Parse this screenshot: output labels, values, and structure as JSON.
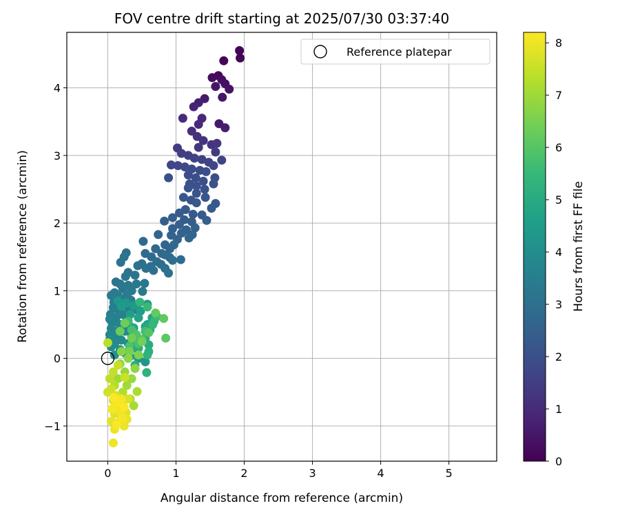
{
  "chart_data": {
    "type": "scatter",
    "title": "FOV centre drift starting at 2025/07/30 03:37:40",
    "xlabel": "Angular distance from reference (arcmin)",
    "ylabel": "Rotation from reference (arcmin)",
    "xlim": [
      -0.6,
      5.7
    ],
    "ylim": [
      -1.52,
      4.82
    ],
    "x_ticks": [
      0,
      1,
      2,
      3,
      4,
      5
    ],
    "x_tick_labels": [
      "0",
      "1",
      "2",
      "3",
      "4",
      "5"
    ],
    "y_ticks": [
      -1,
      0,
      1,
      2,
      3,
      4
    ],
    "y_tick_labels": [
      "−1",
      "0",
      "1",
      "2",
      "3",
      "4"
    ],
    "grid": true,
    "legend": {
      "position": "top-right",
      "label": "Reference platepar"
    },
    "reference_point": {
      "x": 0,
      "y": 0
    },
    "colorbar": {
      "label": "Hours from first FF file",
      "colormap": "viridis",
      "range": [
        0,
        8.2
      ],
      "ticks": [
        0,
        1,
        2,
        3,
        4,
        5,
        6,
        7,
        8
      ],
      "tick_labels": [
        "0",
        "1",
        "2",
        "3",
        "4",
        "5",
        "6",
        "7",
        "8"
      ]
    },
    "points": [
      [
        1.93,
        4.55,
        0.05
      ],
      [
        1.94,
        4.44,
        0.08
      ],
      [
        1.7,
        4.4,
        0.1
      ],
      [
        1.53,
        4.15,
        0.25
      ],
      [
        1.62,
        4.18,
        0.2
      ],
      [
        1.67,
        4.12,
        0.3
      ],
      [
        1.72,
        4.06,
        0.35
      ],
      [
        1.78,
        3.98,
        0.4
      ],
      [
        1.58,
        4.02,
        0.45
      ],
      [
        1.68,
        3.86,
        0.5
      ],
      [
        1.42,
        3.84,
        0.6
      ],
      [
        1.33,
        3.78,
        0.7
      ],
      [
        1.26,
        3.72,
        0.8
      ],
      [
        1.63,
        3.47,
        0.55
      ],
      [
        1.72,
        3.41,
        0.65
      ],
      [
        1.38,
        3.55,
        0.9
      ],
      [
        1.33,
        3.46,
        1.0
      ],
      [
        1.1,
        3.55,
        1.0
      ],
      [
        1.23,
        3.36,
        1.1
      ],
      [
        1.31,
        3.28,
        1.15
      ],
      [
        1.4,
        3.22,
        1.2
      ],
      [
        1.52,
        3.16,
        1.25
      ],
      [
        1.6,
        3.18,
        1.3
      ],
      [
        1.33,
        3.12,
        1.35
      ],
      [
        1.58,
        3.05,
        1.4
      ],
      [
        1.02,
        3.11,
        1.45
      ],
      [
        1.08,
        3.03,
        1.5
      ],
      [
        1.18,
        3.0,
        1.55
      ],
      [
        1.27,
        2.96,
        1.6
      ],
      [
        1.38,
        2.94,
        1.62
      ],
      [
        1.48,
        2.9,
        1.65
      ],
      [
        1.67,
        2.93,
        1.7
      ],
      [
        1.55,
        2.85,
        1.72
      ],
      [
        0.93,
        2.86,
        1.75
      ],
      [
        1.03,
        2.85,
        1.78
      ],
      [
        1.13,
        2.83,
        1.8
      ],
      [
        1.23,
        2.8,
        1.85
      ],
      [
        1.35,
        2.78,
        1.88
      ],
      [
        1.44,
        2.76,
        1.9
      ],
      [
        1.18,
        2.71,
        1.92
      ],
      [
        1.29,
        2.67,
        1.95
      ],
      [
        1.4,
        2.62,
        1.98
      ],
      [
        1.57,
        2.67,
        2.0
      ],
      [
        0.89,
        2.67,
        2.0
      ],
      [
        1.2,
        2.58,
        2.02
      ],
      [
        1.3,
        2.55,
        2.05
      ],
      [
        1.55,
        2.58,
        2.05
      ],
      [
        1.42,
        2.5,
        2.08
      ],
      [
        1.18,
        2.52,
        2.1
      ],
      [
        1.3,
        2.44,
        2.12
      ],
      [
        1.43,
        2.38,
        2.15
      ],
      [
        1.22,
        2.34,
        2.18
      ],
      [
        1.11,
        2.38,
        2.2
      ],
      [
        1.3,
        2.3,
        2.22
      ],
      [
        1.58,
        2.29,
        2.25
      ],
      [
        1.52,
        2.22,
        2.28
      ],
      [
        1.14,
        2.2,
        2.3
      ],
      [
        1.25,
        2.13,
        2.32
      ],
      [
        1.05,
        2.15,
        2.35
      ],
      [
        1.38,
        2.12,
        2.35
      ],
      [
        1.12,
        2.05,
        2.38
      ],
      [
        1.23,
        2.02,
        2.4
      ],
      [
        0.83,
        2.03,
        2.42
      ],
      [
        0.95,
        2.08,
        2.42
      ],
      [
        1.45,
        2.04,
        2.45
      ],
      [
        1.05,
        1.98,
        2.48
      ],
      [
        0.95,
        1.92,
        2.5
      ],
      [
        1.15,
        1.9,
        2.52
      ],
      [
        1.28,
        1.93,
        2.55
      ],
      [
        1.08,
        1.85,
        2.55
      ],
      [
        0.93,
        1.82,
        2.58
      ],
      [
        0.74,
        1.83,
        2.6
      ],
      [
        1.02,
        1.76,
        2.62
      ],
      [
        1.19,
        1.78,
        2.63
      ],
      [
        1.24,
        1.83,
        2.65
      ],
      [
        0.84,
        1.68,
        2.68
      ],
      [
        0.91,
        1.62,
        2.7
      ],
      [
        0.79,
        1.55,
        2.72
      ],
      [
        0.97,
        1.68,
        2.73
      ],
      [
        0.7,
        1.62,
        2.75
      ],
      [
        0.52,
        1.73,
        2.78
      ],
      [
        0.64,
        1.5,
        2.8
      ],
      [
        0.55,
        1.55,
        2.82
      ],
      [
        0.84,
        1.53,
        2.85
      ],
      [
        0.91,
        1.49,
        2.85
      ],
      [
        1.07,
        1.46,
        2.88
      ],
      [
        0.72,
        1.43,
        2.9
      ],
      [
        0.78,
        1.39,
        2.92
      ],
      [
        0.95,
        1.45,
        2.95
      ],
      [
        0.63,
        1.36,
        2.95
      ],
      [
        0.5,
        1.4,
        2.98
      ],
      [
        0.56,
        1.33,
        3.0
      ],
      [
        0.44,
        1.37,
        3.0
      ],
      [
        0.84,
        1.33,
        3.02
      ],
      [
        0.67,
        1.3,
        3.05
      ],
      [
        0.89,
        1.26,
        3.05
      ],
      [
        0.27,
        1.56,
        3.05
      ],
      [
        0.24,
        1.5,
        3.08
      ],
      [
        0.19,
        1.42,
        3.1
      ],
      [
        0.3,
        1.27,
        3.12
      ],
      [
        0.4,
        1.23,
        3.15
      ],
      [
        0.26,
        1.21,
        3.18
      ],
      [
        0.12,
        1.13,
        3.2
      ],
      [
        0.18,
        1.1,
        3.22
      ],
      [
        0.3,
        1.08,
        3.25
      ],
      [
        0.42,
        1.1,
        3.28
      ],
      [
        0.54,
        1.11,
        3.28
      ],
      [
        0.22,
        1.03,
        3.3
      ],
      [
        0.35,
        1.0,
        3.32
      ],
      [
        0.51,
        0.99,
        3.35
      ],
      [
        0.1,
        0.97,
        3.35
      ],
      [
        0.15,
        0.93,
        3.38
      ],
      [
        0.05,
        0.93,
        3.4
      ],
      [
        0.28,
        0.94,
        3.4
      ],
      [
        0.18,
        0.87,
        3.42
      ],
      [
        0.34,
        0.86,
        3.45
      ],
      [
        0.09,
        0.83,
        3.47
      ],
      [
        0.22,
        0.8,
        3.48
      ],
      [
        0.08,
        0.75,
        3.5
      ],
      [
        0.3,
        0.75,
        3.52
      ],
      [
        0.15,
        0.72,
        3.55
      ],
      [
        0.41,
        0.72,
        3.55
      ],
      [
        0.04,
        0.65,
        3.58
      ],
      [
        0.22,
        0.65,
        3.6
      ],
      [
        0.12,
        0.6,
        3.62
      ],
      [
        0.03,
        0.58,
        3.65
      ],
      [
        0.28,
        0.58,
        3.65
      ],
      [
        0.07,
        0.52,
        3.68
      ],
      [
        0.18,
        0.5,
        3.7
      ],
      [
        0.33,
        0.47,
        3.72
      ],
      [
        0.05,
        0.44,
        3.75
      ],
      [
        0.12,
        0.4,
        3.78
      ],
      [
        0.25,
        0.4,
        3.8
      ],
      [
        0.03,
        0.35,
        3.82
      ],
      [
        0.15,
        0.32,
        3.85
      ],
      [
        0.35,
        0.33,
        3.87
      ],
      [
        0.03,
        0.28,
        3.9
      ],
      [
        0.2,
        0.27,
        3.92
      ],
      [
        0.1,
        0.22,
        3.95
      ],
      [
        0.3,
        0.22,
        3.97
      ],
      [
        0.05,
        0.17,
        4.0
      ],
      [
        0.18,
        0.13,
        4.05
      ],
      [
        0.4,
        0.15,
        4.08
      ],
      [
        0.25,
        0.08,
        4.1
      ],
      [
        0.1,
        0.05,
        4.15
      ],
      [
        0.33,
        0.03,
        4.2
      ],
      [
        0.45,
        0.0,
        4.25
      ],
      [
        0.55,
        -0.05,
        4.3
      ],
      [
        0.15,
        0.85,
        4.3
      ],
      [
        0.27,
        0.82,
        4.35
      ],
      [
        0.38,
        0.78,
        4.4
      ],
      [
        0.58,
        0.8,
        4.45
      ],
      [
        0.2,
        0.77,
        4.5
      ],
      [
        0.48,
        0.7,
        4.55
      ],
      [
        0.33,
        0.65,
        4.6
      ],
      [
        0.58,
        0.5,
        4.65
      ],
      [
        0.45,
        0.6,
        4.7
      ],
      [
        0.65,
        0.6,
        4.75
      ],
      [
        0.55,
        0.47,
        4.8
      ],
      [
        0.38,
        0.45,
        4.85
      ],
      [
        0.62,
        0.42,
        4.9
      ],
      [
        0.55,
        0.3,
        4.95
      ],
      [
        0.4,
        0.27,
        5.0
      ],
      [
        0.6,
        0.2,
        5.05
      ],
      [
        0.45,
        0.15,
        5.1
      ],
      [
        0.6,
        0.1,
        5.15
      ],
      [
        0.4,
        -0.1,
        5.2
      ],
      [
        0.57,
        -0.21,
        5.25
      ],
      [
        0.58,
        0.05,
        5.3
      ],
      [
        0.68,
        0.55,
        5.35
      ],
      [
        0.47,
        0.83,
        5.4
      ],
      [
        0.66,
        0.5,
        5.45
      ],
      [
        0.72,
        0.62,
        5.5
      ],
      [
        0.58,
        0.76,
        5.55
      ],
      [
        0.3,
        0.55,
        5.6
      ],
      [
        0.4,
        0.35,
        5.65
      ],
      [
        0.55,
        0.4,
        5.7
      ],
      [
        0.35,
        0.42,
        5.75
      ],
      [
        0.45,
        0.22,
        5.8
      ],
      [
        0.32,
        0.18,
        5.85
      ],
      [
        0.5,
        0.28,
        5.9
      ],
      [
        0.42,
        0.35,
        5.95
      ],
      [
        0.6,
        0.38,
        6.0
      ],
      [
        0.85,
        0.3,
        6.1
      ],
      [
        0.82,
        0.59,
        6.15
      ],
      [
        0.7,
        0.67,
        6.2
      ],
      [
        0.18,
        0.4,
        6.3
      ],
      [
        0.25,
        0.52,
        6.35
      ],
      [
        0.35,
        0.3,
        6.4
      ],
      [
        0.5,
        0.25,
        6.45
      ],
      [
        0.32,
        0.1,
        6.5
      ],
      [
        0.45,
        0.05,
        6.6
      ],
      [
        0.2,
        0.1,
        6.7
      ],
      [
        0.3,
        0.0,
        6.75
      ],
      [
        0.4,
        -0.15,
        6.8
      ],
      [
        0.18,
        -0.08,
        6.85
      ],
      [
        0.25,
        -0.2,
        6.9
      ],
      [
        0.35,
        -0.3,
        6.95
      ],
      [
        0.15,
        -0.3,
        7.0
      ],
      [
        0.28,
        -0.4,
        7.05
      ],
      [
        0.38,
        -0.7,
        7.1
      ],
      [
        0.43,
        -0.49,
        7.15
      ],
      [
        0.33,
        -0.6,
        7.2
      ],
      [
        0.22,
        -0.5,
        7.25
      ],
      [
        0.1,
        -0.4,
        7.3
      ],
      [
        0.0,
        0.23,
        7.35
      ],
      [
        0.03,
        -0.3,
        7.4
      ],
      [
        0.08,
        -0.2,
        7.45
      ],
      [
        0.15,
        -0.1,
        7.5
      ],
      [
        0.25,
        -0.28,
        7.55
      ],
      [
        0.05,
        -0.45,
        7.6
      ],
      [
        0.0,
        -0.5,
        7.62
      ],
      [
        0.12,
        -0.55,
        7.65
      ],
      [
        0.22,
        -0.65,
        7.7
      ],
      [
        0.3,
        -0.6,
        7.72
      ],
      [
        0.08,
        -0.62,
        7.75
      ],
      [
        0.15,
        -0.72,
        7.78
      ],
      [
        0.27,
        -0.8,
        7.8
      ],
      [
        0.1,
        -0.82,
        7.82
      ],
      [
        0.2,
        -0.85,
        7.85
      ],
      [
        0.05,
        -0.93,
        7.88
      ],
      [
        0.28,
        -0.9,
        7.9
      ],
      [
        0.15,
        -0.95,
        7.92
      ],
      [
        0.24,
        -1.0,
        7.95
      ],
      [
        0.1,
        -1.05,
        7.98
      ],
      [
        0.08,
        -1.25,
        8.0
      ],
      [
        0.18,
        -0.78,
        8.02
      ],
      [
        0.12,
        -0.7,
        8.05
      ],
      [
        0.2,
        -0.6,
        8.08
      ],
      [
        0.22,
        -0.88,
        8.1
      ],
      [
        0.06,
        -0.75,
        8.12
      ],
      [
        0.16,
        -0.65,
        8.14
      ],
      [
        0.13,
        -0.98,
        8.16
      ],
      [
        0.24,
        -0.72,
        8.18
      ],
      [
        0.09,
        -0.58,
        8.2
      ]
    ]
  }
}
